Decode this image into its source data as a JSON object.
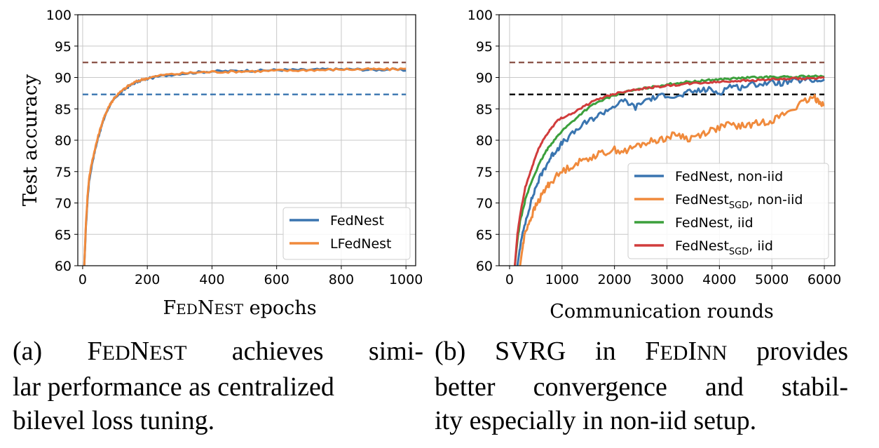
{
  "chart_data": [
    {
      "type": "line",
      "panel": "a",
      "xlabel": "FEDNEST epochs",
      "ylabel": "Test accuracy",
      "xlim": [
        -15,
        1030
      ],
      "ylim": [
        60,
        100
      ],
      "xticks": [
        0,
        200,
        400,
        600,
        800,
        1000
      ],
      "yticks": [
        60,
        65,
        70,
        75,
        80,
        85,
        90,
        95,
        100
      ],
      "grid": true,
      "legend_position": "bottom-right",
      "series": [
        {
          "name": "FedNest",
          "color": "#3a75b0",
          "x": [
            5,
            10,
            15,
            20,
            30,
            40,
            50,
            60,
            70,
            80,
            90,
            100,
            120,
            140,
            160,
            180,
            200,
            250,
            300,
            350,
            400,
            450,
            500,
            550,
            600,
            650,
            700,
            750,
            800,
            850,
            900,
            950,
            1000
          ],
          "y": [
            60,
            66,
            70.5,
            73.5,
            76.5,
            78.8,
            80.8,
            82.5,
            84,
            85.2,
            86,
            86.8,
            87.7,
            88.5,
            89.1,
            89.5,
            89.8,
            90.3,
            90.6,
            90.8,
            91.0,
            91.0,
            91.1,
            91.1,
            91.2,
            91.2,
            91.2,
            91.3,
            91.3,
            91.3,
            91.2,
            91.3,
            91.1
          ]
        },
        {
          "name": "LFedNest",
          "color": "#f08a3c",
          "x": [
            5,
            10,
            15,
            20,
            30,
            40,
            50,
            60,
            70,
            80,
            90,
            100,
            120,
            140,
            160,
            180,
            200,
            250,
            300,
            350,
            400,
            450,
            500,
            550,
            600,
            650,
            700,
            750,
            800,
            850,
            900,
            950,
            1000
          ],
          "y": [
            60,
            66.5,
            71,
            74,
            76.8,
            79,
            81,
            82.7,
            84.1,
            85.3,
            86.1,
            86.9,
            87.8,
            88.6,
            89.2,
            89.6,
            89.9,
            90.4,
            90.6,
            90.8,
            90.9,
            90.9,
            91.0,
            91.0,
            91.1,
            91.1,
            91.2,
            91.2,
            91.3,
            91.3,
            91.3,
            91.3,
            91.4
          ]
        }
      ],
      "reference_lines": [
        {
          "y": 92.4,
          "color": "#8c564b",
          "style": "dashed"
        },
        {
          "y": 87.3,
          "color": "#3a75b0",
          "style": "dashed"
        }
      ]
    },
    {
      "type": "line",
      "panel": "b",
      "xlabel": "Communication rounds",
      "ylabel": "",
      "xlim": [
        -200,
        6200
      ],
      "ylim": [
        60,
        100
      ],
      "xticks": [
        0,
        1000,
        2000,
        3000,
        4000,
        5000,
        6000
      ],
      "yticks": [
        60,
        65,
        70,
        75,
        80,
        85,
        90,
        95,
        100
      ],
      "grid": true,
      "legend_position": "bottom-right",
      "series": [
        {
          "name": "FedNest, non-iid",
          "name_main": "FedNest",
          "name_sub": "",
          "name_rest": ", non-iid",
          "color": "#3a75b0",
          "x": [
            150,
            200,
            300,
            400,
            500,
            600,
            700,
            800,
            900,
            1000,
            1200,
            1400,
            1600,
            1800,
            2000,
            2200,
            2400,
            2600,
            2800,
            3000,
            3200,
            3400,
            3600,
            3800,
            4000,
            4200,
            4400,
            4600,
            4800,
            5000,
            5200,
            5400,
            5600,
            5800,
            6000
          ],
          "y": [
            60,
            63,
            67,
            70,
            72.5,
            74.5,
            76,
            77.5,
            78.5,
            79.5,
            81,
            82.5,
            83.5,
            84.5,
            85.5,
            86.3,
            85.2,
            86.5,
            86.8,
            87.3,
            86.8,
            87.6,
            87.9,
            88.1,
            87.5,
            88.7,
            88.4,
            88.9,
            89.0,
            89.2,
            89.1,
            89.4,
            89.6,
            89.5,
            89.7
          ]
        },
        {
          "name": "FedNestSGD, non-iid",
          "name_main": "FedNest",
          "name_sub": "SGD",
          "name_rest": ", non-iid",
          "color": "#f08a3c",
          "x": [
            200,
            250,
            300,
            400,
            500,
            600,
            700,
            800,
            1000,
            1200,
            1400,
            1600,
            1800,
            2000,
            2200,
            2400,
            2600,
            2800,
            3000,
            3200,
            3400,
            3600,
            3800,
            4000,
            4200,
            4400,
            4600,
            4800,
            5000,
            5200,
            5400,
            5600,
            5800,
            5900,
            6000
          ],
          "y": [
            60,
            63,
            65.5,
            67.5,
            69.5,
            71,
            72.5,
            73.5,
            75,
            76,
            76.8,
            77.5,
            78,
            78.5,
            78.2,
            79,
            79.6,
            80,
            80.4,
            81,
            80.2,
            80.8,
            81.5,
            82,
            82.5,
            82.2,
            82.5,
            82.8,
            83.2,
            84,
            85,
            86,
            86.8,
            86.3,
            85.6
          ]
        },
        {
          "name": "FedNest, iid",
          "name_main": "FedNest",
          "name_sub": "",
          "name_rest": ", iid",
          "color": "#3ca03c",
          "x": [
            100,
            150,
            200,
            300,
            400,
            500,
            600,
            700,
            800,
            900,
            1000,
            1200,
            1400,
            1600,
            1800,
            2000,
            2200,
            2400,
            2600,
            2800,
            3000,
            3200,
            3400,
            3600,
            3800,
            4000,
            4200,
            4400,
            4600,
            4800,
            5000,
            5200,
            5400,
            5600,
            5800,
            6000
          ],
          "y": [
            60,
            64,
            67,
            70.5,
            73,
            75,
            76.8,
            78.3,
            79.5,
            80.5,
            81.5,
            83,
            84.5,
            85.7,
            86.5,
            87.2,
            87.7,
            88,
            88.3,
            88.6,
            88.9,
            89.1,
            89.3,
            89.4,
            89.6,
            89.7,
            89.8,
            89.9,
            90.0,
            90.0,
            90.1,
            90.1,
            90.0,
            90.2,
            90.2,
            90.1
          ]
        },
        {
          "name": "FedNestSGD, iid",
          "name_main": "FedNest",
          "name_sub": "SGD",
          "name_rest": ", iid",
          "color": "#d13c3c",
          "x": [
            100,
            150,
            200,
            300,
            400,
            500,
            600,
            700,
            800,
            900,
            1000,
            1200,
            1400,
            1600,
            1800,
            2000,
            2200,
            2400,
            2600,
            2800,
            3000,
            3200,
            3400,
            3600,
            3800,
            4000,
            4200,
            4400,
            4600,
            4800,
            5000,
            5200,
            5400,
            5600,
            5800,
            6000
          ],
          "y": [
            60,
            65,
            68,
            72.5,
            75,
            77.5,
            79.5,
            80.8,
            82,
            83,
            83.6,
            84.3,
            85.3,
            86.2,
            86.9,
            87.4,
            87.8,
            88.1,
            88.3,
            88.5,
            88.7,
            88.8,
            89.0,
            89.1,
            89.2,
            89.3,
            89.4,
            89.5,
            89.5,
            89.6,
            89.7,
            89.7,
            89.8,
            89.8,
            89.9,
            89.9
          ]
        }
      ],
      "reference_lines": [
        {
          "y": 92.4,
          "color": "#8c564b",
          "style": "dashed"
        },
        {
          "y": 87.3,
          "color": "#000000",
          "style": "dashed"
        }
      ]
    }
  ],
  "captions": {
    "a": {
      "label": "(a)",
      "name": "FedNest",
      "line1_rest": "achieves simi-",
      "line2": "lar performance as centralized",
      "line3": "bilevel loss tuning."
    },
    "b": {
      "line1_pre": "(b) SVRG in",
      "name": "FedInn",
      "line1_rest": "provides",
      "line2": "better convergence and stabil-",
      "line3": "ity especially in non-iid setup."
    }
  }
}
